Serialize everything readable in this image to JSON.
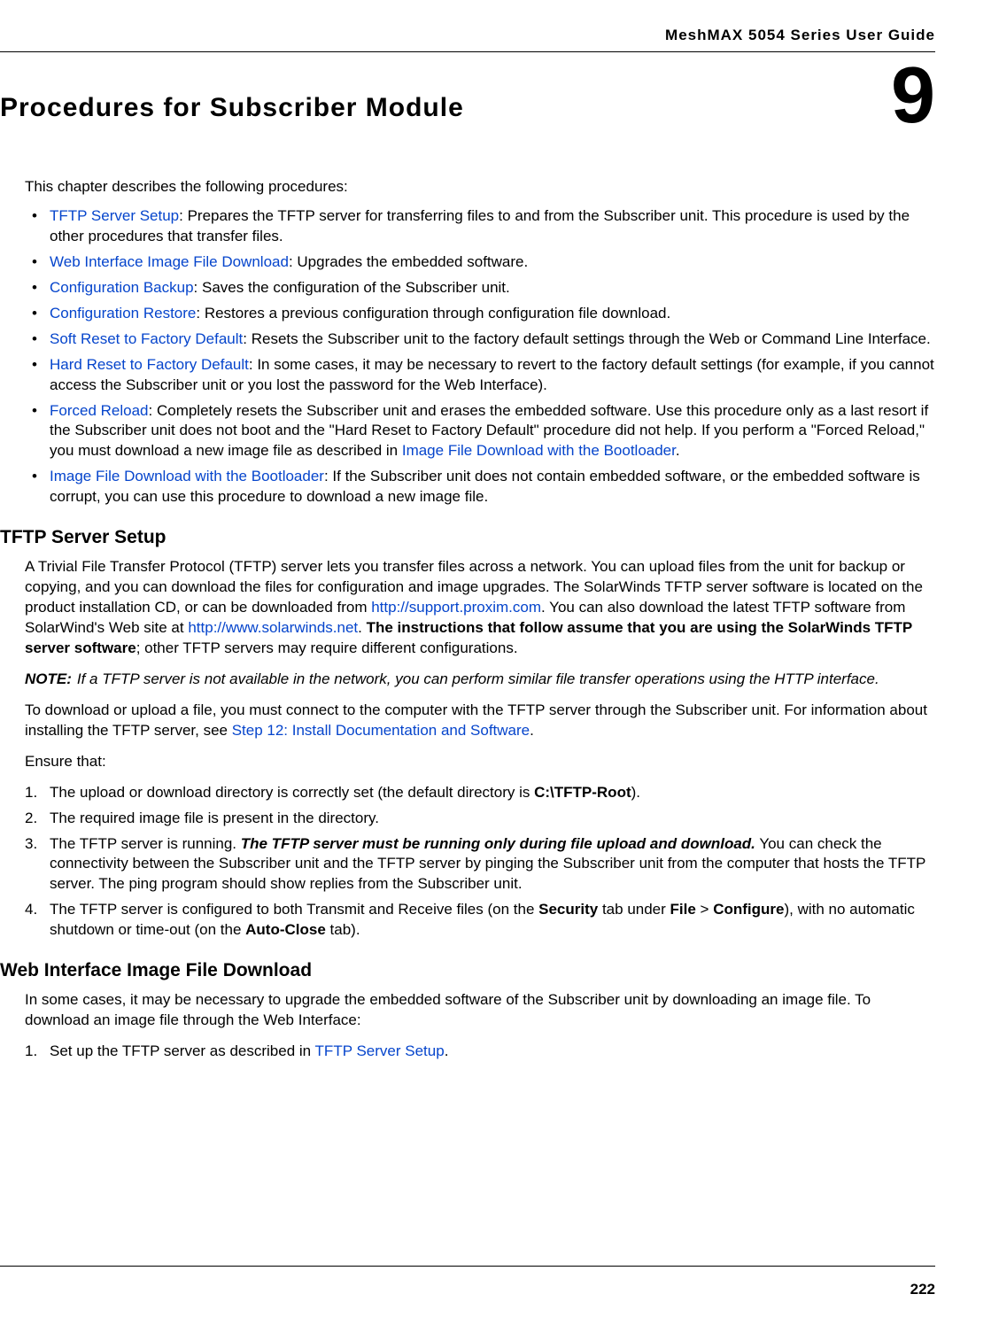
{
  "header": {
    "guide": "MeshMAX 5054 Series User Guide"
  },
  "chapter": {
    "title": "Procedures for Subscriber Module",
    "number": "9"
  },
  "intro": "This chapter describes the following procedures:",
  "bullets": [
    {
      "link": "TFTP Server Setup",
      "text": ": Prepares the TFTP server for transferring files to and from the Subscriber unit. This procedure is used by the other procedures that transfer files."
    },
    {
      "link": "Web Interface Image File Download",
      "text": ": Upgrades the embedded software."
    },
    {
      "link": "Configuration Backup",
      "text": ": Saves the configuration of the Subscriber unit."
    },
    {
      "link": "Configuration Restore",
      "text": ": Restores a previous configuration through configuration file download."
    },
    {
      "link": "Soft Reset to Factory Default",
      "text": ": Resets the Subscriber unit to the factory default settings through the Web or Command Line Interface."
    },
    {
      "link": "Hard Reset to Factory Default",
      "text": ": In some cases, it may be necessary to revert to the factory default settings (for example, if you cannot access the Subscriber unit or you lost the password for the Web Interface)."
    },
    {
      "link": "Forced Reload",
      "pre": ": Completely resets the Subscriber unit and erases the embedded software. Use this procedure only as a last resort if the Subscriber unit does not boot and the \"Hard Reset to Factory Default\" procedure did not help. If you perform a \"Forced Reload,\" you must download a new image file as described in ",
      "link2": "Image File Download with the Bootloader",
      "post": "."
    },
    {
      "link": "Image File Download with the Bootloader",
      "text": ": If the Subscriber unit does not contain embedded software, or the embedded software is corrupt, you can use this procedure to download a new image file."
    }
  ],
  "tftp": {
    "heading": "TFTP Server Setup",
    "p1a": "A Trivial File Transfer Protocol (TFTP) server lets you transfer files across a network. You can upload files from the unit for backup or copying, and you can download the files for configuration and image upgrades. The SolarWinds TFTP server software is located on the product installation CD, or can be downloaded from ",
    "l1": "http://support.proxim.com",
    "p1b": ". You can also download the latest TFTP software from SolarWind's Web site at ",
    "l2": "http://www.solarwinds.net",
    "p1c": ". ",
    "b1": "The instructions that follow assume that you are using the SolarWinds TFTP server software",
    "p1d": "; other TFTP servers may require different configurations.",
    "note_label": "NOTE:",
    "note": "If a TFTP server is not available in the network, you can perform similar file transfer operations using the HTTP interface.",
    "p2a": "To download or upload a file, you must connect to the computer with the TFTP server through the Subscriber unit. For information about installing the TFTP server, see ",
    "l3": "Step 12: Install Documentation and Software",
    "p2b": ".",
    "ensure": "Ensure that:",
    "steps": {
      "s1a": "The upload or download directory is correctly set (the default directory is ",
      "s1b": "C:\\TFTP-Root",
      "s1c": ").",
      "s2": "The required image file is present in the directory.",
      "s3a": "The TFTP server is running. ",
      "s3b": "The TFTP server must be running only during file upload and download.",
      "s3c": " You can check the connectivity between the Subscriber unit and the TFTP server by pinging the Subscriber unit from the computer that hosts the TFTP server. The ping program should show replies from the Subscriber unit.",
      "s4a": "The TFTP server is configured to both Transmit and Receive files (on the ",
      "s4b": "Security",
      "s4c": " tab under ",
      "s4d": "File",
      "s4e": " > ",
      "s4f": "Configure",
      "s4g": "), with no automatic shutdown or time-out (on the ",
      "s4h": "Auto-Close",
      "s4i": " tab)."
    }
  },
  "web": {
    "heading": "Web Interface Image File Download",
    "p1": "In some cases, it may be necessary to upgrade the embedded software of the Subscriber unit by downloading an image file. To download an image file through the Web Interface:",
    "s1a": "Set up the TFTP server as described in ",
    "s1l": "TFTP Server Setup",
    "s1b": "."
  },
  "footer": {
    "page": "222"
  }
}
